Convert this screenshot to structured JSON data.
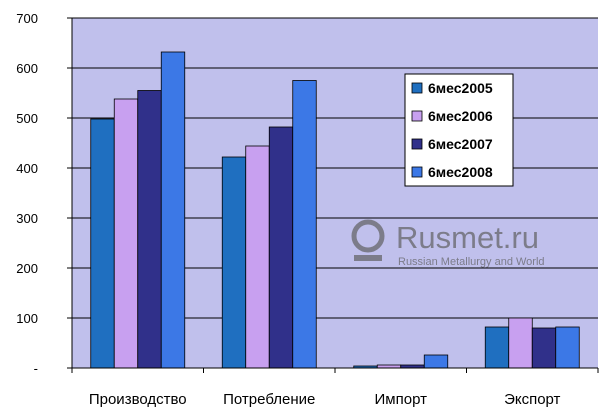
{
  "chart_data": {
    "type": "bar",
    "categories": [
      "Производство",
      "Потребление",
      "Импорт",
      "Экспорт"
    ],
    "series": [
      {
        "name": "6мес2005",
        "color": "#1f6fc0",
        "values": [
          498,
          422,
          4,
          82
        ]
      },
      {
        "name": "6мес2006",
        "color": "#c8a0f0",
        "values": [
          538,
          444,
          6,
          100
        ]
      },
      {
        "name": "6мес2007",
        "color": "#30308a",
        "values": [
          555,
          482,
          6,
          80
        ]
      },
      {
        "name": "6мес2008",
        "color": "#3c78e6",
        "values": [
          632,
          575,
          26,
          82
        ]
      }
    ],
    "ylim": [
      0,
      700
    ],
    "yticks": [
      0,
      100,
      200,
      300,
      400,
      500,
      600,
      700
    ],
    "ytick_labels": [
      "-",
      "100",
      "200",
      "300",
      "400",
      "500",
      "600",
      "700"
    ],
    "grid": true,
    "legend_position": "right",
    "plot_background": "#c0c0ec"
  },
  "watermark": {
    "icon": "rusmet-logo-icon",
    "title": "Rusmet.ru",
    "subtitle": "Russian Metallurgy and World"
  }
}
